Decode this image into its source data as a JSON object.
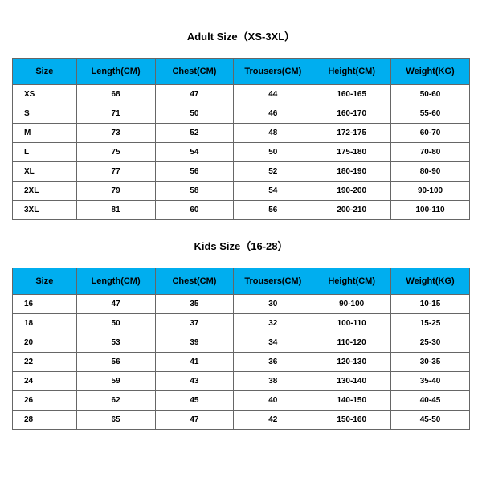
{
  "adult": {
    "title": "Adult Size（XS-3XL）",
    "title_fontsize": 13,
    "title_color": "#000000",
    "header_bg": "#00aeef",
    "header_text_color": "#000000",
    "border_color": "#666666",
    "row_bg": "#ffffff",
    "cell_fontsize": 10,
    "header_fontsize": 11,
    "columns": [
      "Size",
      "Length(CM)",
      "Chest(CM)",
      "Trousers(CM)",
      "Height(CM)",
      "Weight(KG)"
    ],
    "rows": [
      [
        "XS",
        "68",
        "47",
        "44",
        "160-165",
        "50-60"
      ],
      [
        "S",
        "71",
        "50",
        "46",
        "160-170",
        "55-60"
      ],
      [
        "M",
        "73",
        "52",
        "48",
        "172-175",
        "60-70"
      ],
      [
        "L",
        "75",
        "54",
        "50",
        "175-180",
        "70-80"
      ],
      [
        "XL",
        "77",
        "56",
        "52",
        "180-190",
        "80-90"
      ],
      [
        "2XL",
        "79",
        "58",
        "54",
        "190-200",
        "90-100"
      ],
      [
        "3XL",
        "81",
        "60",
        "56",
        "200-210",
        "100-110"
      ]
    ]
  },
  "kids": {
    "title": "Kids Size（16-28）",
    "title_fontsize": 13,
    "title_color": "#000000",
    "header_bg": "#00aeef",
    "header_text_color": "#000000",
    "border_color": "#666666",
    "row_bg": "#ffffff",
    "cell_fontsize": 10,
    "header_fontsize": 11,
    "columns": [
      "Size",
      "Length(CM)",
      "Chest(CM)",
      "Trousers(CM)",
      "Height(CM)",
      "Weight(KG)"
    ],
    "rows": [
      [
        "16",
        "47",
        "35",
        "30",
        "90-100",
        "10-15"
      ],
      [
        "18",
        "50",
        "37",
        "32",
        "100-110",
        "15-25"
      ],
      [
        "20",
        "53",
        "39",
        "34",
        "110-120",
        "25-30"
      ],
      [
        "22",
        "56",
        "41",
        "36",
        "120-130",
        "30-35"
      ],
      [
        "24",
        "59",
        "43",
        "38",
        "130-140",
        "35-40"
      ],
      [
        "26",
        "62",
        "45",
        "40",
        "140-150",
        "40-45"
      ],
      [
        "28",
        "65",
        "47",
        "42",
        "150-160",
        "45-50"
      ]
    ]
  }
}
